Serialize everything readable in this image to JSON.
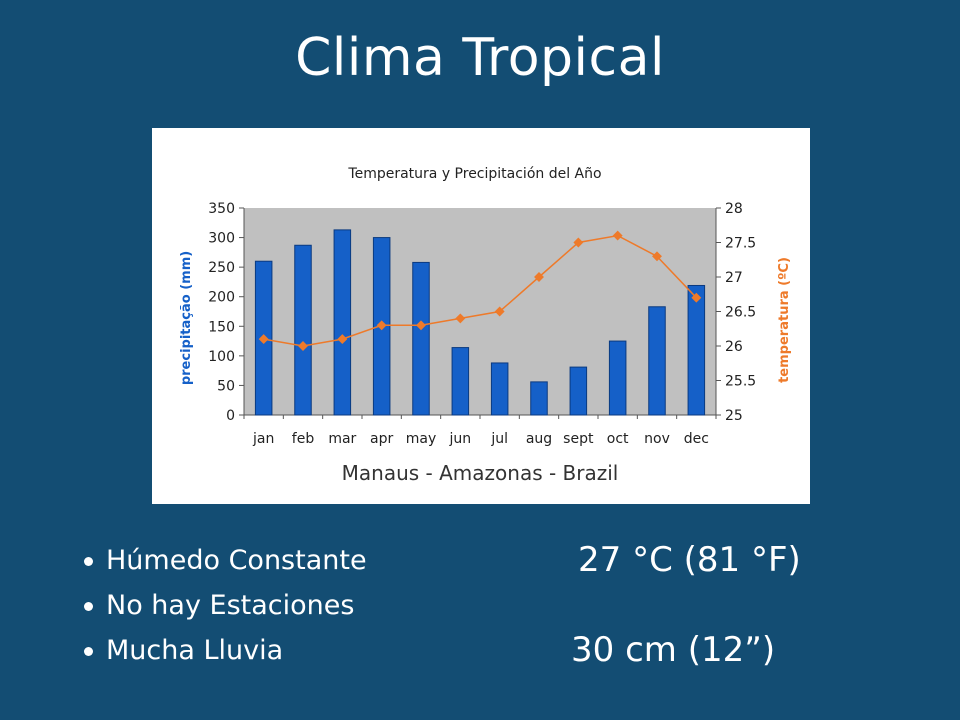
{
  "slide": {
    "title": "Clima Tropical",
    "bullets": [
      "Húmedo Constante",
      "No hay Estaciones",
      "Mucha Lluvia"
    ],
    "stats": {
      "temperature": "27 °C (81 °F)",
      "rainfall": "30 cm (12”)"
    }
  },
  "chart_data": {
    "type": "bar+line",
    "title": "Temperatura y Precipitación del Año",
    "subtitle": "Manaus - Amazonas - Brazil",
    "categories": [
      "jan",
      "feb",
      "mar",
      "apr",
      "may",
      "jun",
      "jul",
      "aug",
      "sept",
      "oct",
      "nov",
      "dec"
    ],
    "ylabel_left": "precipitação (mm)",
    "ylabel_right": "temperatura (ºC)",
    "ylim_left": [
      0,
      350
    ],
    "ylim_right": [
      25,
      28
    ],
    "yticks_left": [
      "0",
      "50",
      "100",
      "150",
      "200",
      "250",
      "300",
      "350"
    ],
    "yticks_right": [
      "25",
      "25.5",
      "26",
      "26.5",
      "27",
      "27.5",
      "28"
    ],
    "series": [
      {
        "kind": "bar",
        "axis": "left",
        "color": "#1560c8",
        "values": [
          260,
          287,
          313,
          300,
          258,
          114,
          88,
          56,
          81,
          125,
          183,
          219
        ]
      },
      {
        "kind": "line",
        "axis": "right",
        "color": "#ee7a2a",
        "values": [
          26.1,
          26.0,
          26.1,
          26.3,
          26.3,
          26.4,
          26.5,
          27.0,
          27.5,
          27.6,
          27.3,
          26.7
        ]
      }
    ],
    "plot_background": "#c0c0c0",
    "grid": false
  }
}
